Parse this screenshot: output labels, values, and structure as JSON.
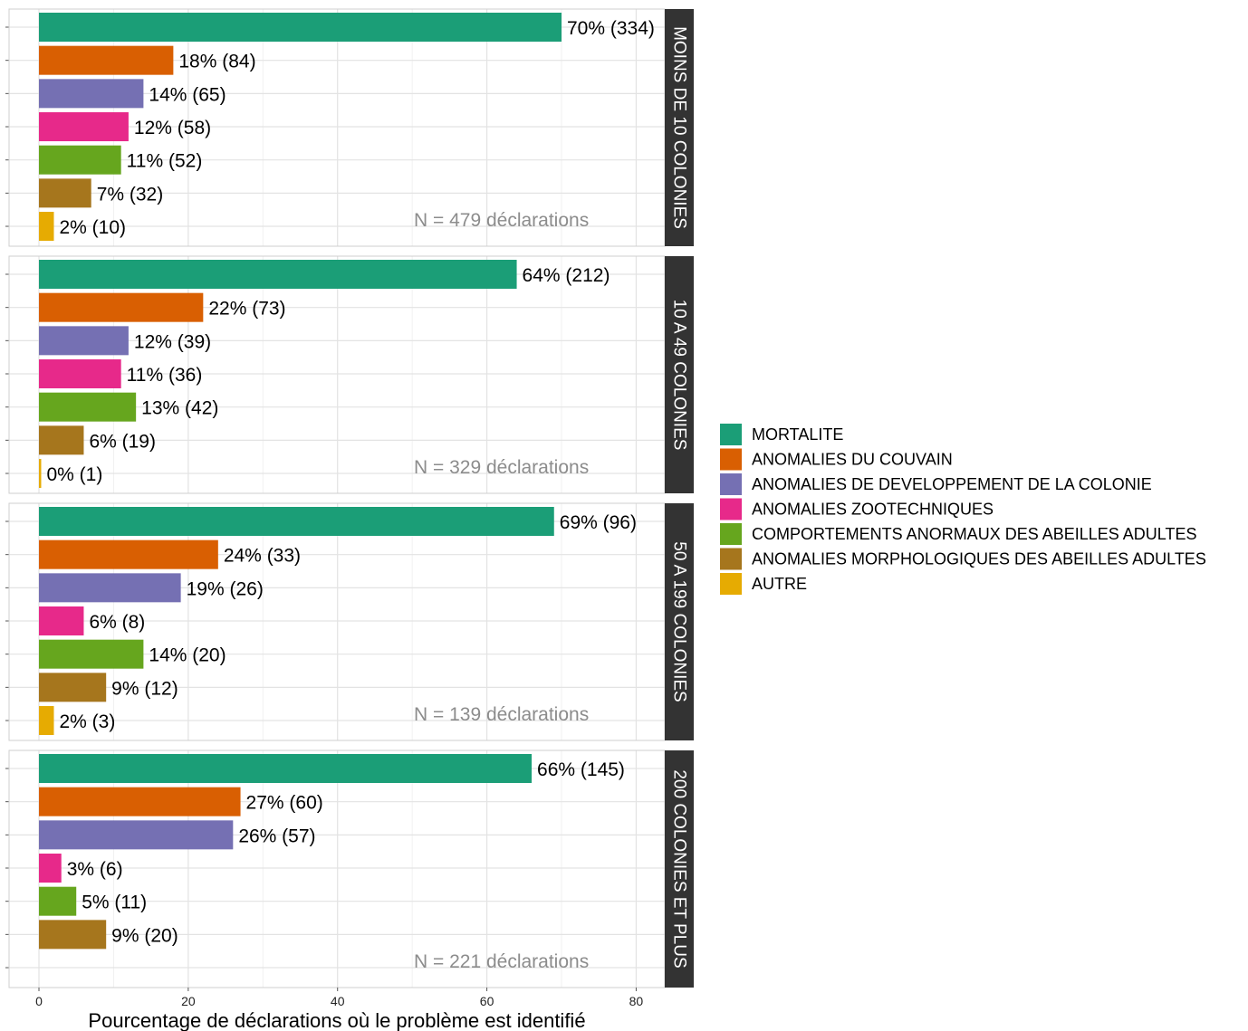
{
  "chart_data": {
    "type": "bar",
    "orientation": "horizontal",
    "xlabel": "Pourcentage de déclarations où le problème est identifié",
    "xlim": [
      0,
      85
    ],
    "xticks": [
      0,
      20,
      40,
      60,
      80
    ],
    "grid": true,
    "legend_position": "right",
    "series": [
      {
        "name": "MORTALITE",
        "color": "#1b9e77"
      },
      {
        "name": "ANOMALIES DU COUVAIN",
        "color": "#d95f02"
      },
      {
        "name": "ANOMALIES DE DEVELOPPEMENT DE LA COLONIE",
        "color": "#7570b3"
      },
      {
        "name": "ANOMALIES ZOOTECHNIQUES",
        "color": "#e7298a"
      },
      {
        "name": "COMPORTEMENTS ANORMAUX DES ABEILLES ADULTES",
        "color": "#66a61e"
      },
      {
        "name": "ANOMALIES MORPHOLOGIQUES DES ABEILLES ADULTES",
        "color": "#a6761d"
      },
      {
        "name": "AUTRE",
        "color": "#e6ab02"
      }
    ],
    "panels": [
      {
        "strip": "MOINS DE 10 COLONIES",
        "n_label": "N = 479 déclarations",
        "values": [
          70,
          18,
          14,
          12,
          11,
          7,
          2
        ],
        "labels": [
          "70% (334)",
          "18% (84)",
          "14% (65)",
          "12% (58)",
          "11% (52)",
          "7% (32)",
          "2% (10)"
        ]
      },
      {
        "strip": "10 A 49 COLONIES",
        "n_label": "N = 329 déclarations",
        "values": [
          64,
          22,
          12,
          11,
          13,
          6,
          0.3
        ],
        "labels": [
          "64% (212)",
          "22% (73)",
          "12% (39)",
          "11% (36)",
          "13% (42)",
          "6% (19)",
          "0% (1)"
        ]
      },
      {
        "strip": "50 A 199 COLONIES",
        "n_label": "N = 139 déclarations",
        "values": [
          69,
          24,
          19,
          6,
          14,
          9,
          2
        ],
        "labels": [
          "69% (96)",
          "24% (33)",
          "19% (26)",
          "6% (8)",
          "14% (20)",
          "9% (12)",
          "2% (3)"
        ]
      },
      {
        "strip": "200 COLONIES ET PLUS",
        "n_label": "N = 221 déclarations",
        "values": [
          66,
          27,
          26,
          3,
          5,
          9,
          null
        ],
        "labels": [
          "66% (145)",
          "27% (60)",
          "26% (57)",
          "3% (6)",
          "5% (11)",
          "9% (20)",
          ""
        ]
      }
    ]
  }
}
